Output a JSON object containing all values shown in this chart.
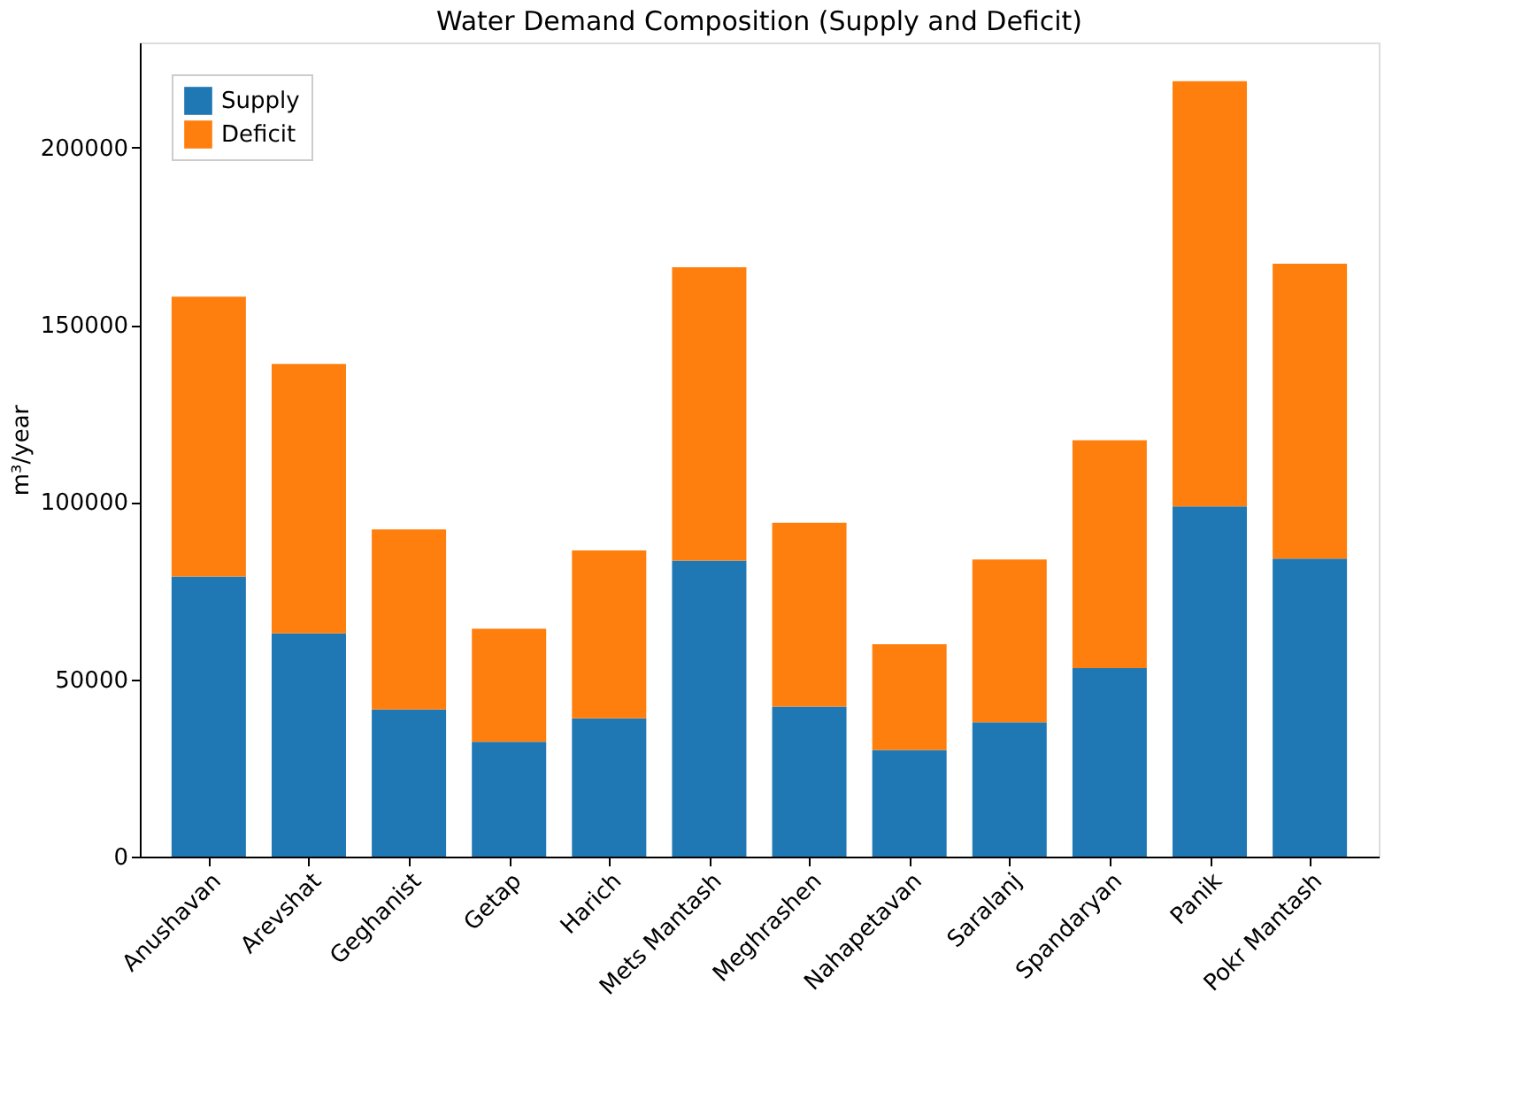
{
  "chart_data": {
    "type": "bar",
    "title": "Water Demand Composition (Supply and Deficit)",
    "ylabel": "m³/year",
    "categories": [
      "Anushavan",
      "Arevshat",
      "Geghanist",
      "Getap",
      "Harich",
      "Mets Mantash",
      "Meghrashen",
      "Nahapetavan",
      "Saralanj",
      "Spandaryan",
      "Panik",
      "Pokr Mantash"
    ],
    "series": [
      {
        "name": "Supply",
        "color": "#1f77b4",
        "values": [
          79000,
          63000,
          41500,
          32400,
          39000,
          83500,
          42300,
          30100,
          37900,
          53200,
          98800,
          84100
        ]
      },
      {
        "name": "Deficit",
        "color": "#ff7f0e",
        "values": [
          79000,
          76000,
          50800,
          31900,
          47400,
          82800,
          51900,
          29800,
          45900,
          64300,
          120000,
          83200
        ]
      }
    ],
    "stacked": true,
    "ylim": [
      0,
      229700
    ],
    "yticks": [
      0,
      50000,
      100000,
      150000,
      200000
    ],
    "grid": false,
    "legend": "top left"
  }
}
